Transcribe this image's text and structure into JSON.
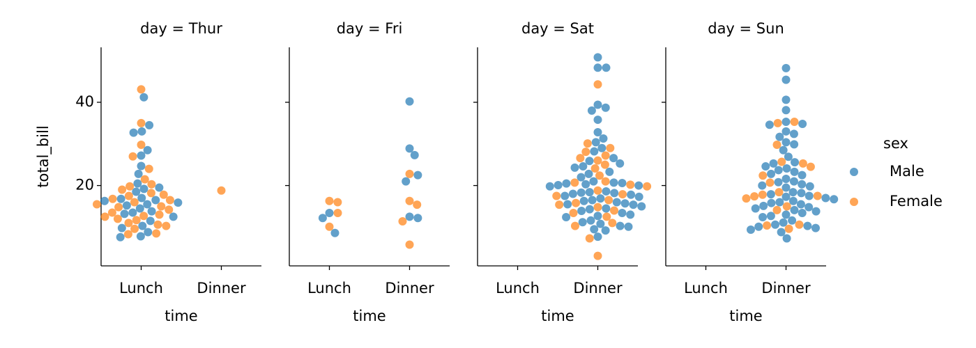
{
  "chart_data": [
    {
      "type": "swarm",
      "title": "day = Thur",
      "xlabel": "time",
      "ylabel": "total_bill",
      "categories": [
        "Lunch",
        "Dinner"
      ],
      "ylim": [
        0.7,
        53.2
      ],
      "yticks": [
        20,
        40
      ],
      "series": [
        {
          "name": "Male",
          "color": "#1f77b4",
          "values": [
            [
              41.2,
              34.5,
              32.7,
              33.0,
              28.5,
              27.2,
              24.7,
              22.8,
              20.5,
              19.5,
              19.2,
              18.5,
              17.0,
              16.8,
              16.5,
              16.3,
              15.9,
              15.5,
              15.2,
              14.5,
              13.8,
              13.5,
              13.2,
              12.5,
              11.5,
              10.3,
              9.8,
              8.8,
              7.8,
              7.6
            ],
            []
          ]
        },
        {
          "name": "Female",
          "color": "#ff7f0e",
          "values": [
            [
              43.1,
              35.0,
              29.8,
              27.0,
              24.0,
              21.5,
              20.3,
              19.8,
              19.0,
              18.2,
              17.8,
              17.5,
              16.8,
              16.5,
              16.0,
              15.5,
              15.0,
              14.8,
              14.2,
              13.5,
              13.0,
              12.7,
              12.5,
              12.0,
              11.7,
              11.0,
              10.6,
              10.3,
              9.6,
              8.5,
              8.3
            ],
            [
              18.8
            ]
          ]
        }
      ]
    },
    {
      "type": "swarm",
      "title": "day = Fri",
      "xlabel": "time",
      "categories": [
        "Lunch",
        "Dinner"
      ],
      "ylim": [
        0.7,
        53.2
      ],
      "yticks": [
        20,
        40
      ],
      "series": [
        {
          "name": "Male",
          "color": "#1f77b4",
          "values": [
            [
              13.4,
              12.2,
              8.6
            ],
            [
              40.2,
              28.9,
              27.3,
              22.5,
              21.0,
              12.5,
              12.2
            ]
          ]
        },
        {
          "name": "Female",
          "color": "#ff7f0e",
          "values": [
            [
              16.3,
              16.0,
              13.4,
              10.1
            ],
            [
              22.8,
              16.3,
              15.4,
              11.4,
              5.8
            ]
          ]
        }
      ]
    },
    {
      "type": "swarm",
      "title": "day = Sat",
      "xlabel": "time",
      "categories": [
        "Lunch",
        "Dinner"
      ],
      "ylim": [
        0.7,
        53.2
      ],
      "yticks": [
        20,
        40
      ],
      "series": [
        {
          "name": "Male",
          "color": "#1f77b4",
          "values": [
            [],
            [
              50.8,
              48.3,
              48.3,
              39.4,
              38.7,
              38.0,
              35.8,
              32.8,
              31.3,
              30.4,
              29.0,
              28.2,
              26.6,
              25.9,
              25.3,
              24.6,
              24.3,
              23.3,
              22.8,
              22.0,
              21.0,
              20.7,
              20.6,
              20.5,
              20.3,
              20.1,
              20.0,
              19.8,
              18.6,
              18.4,
              18.3,
              18.2,
              18.0,
              17.8,
              17.5,
              17.3,
              16.9,
              16.5,
              16.3,
              16.0,
              15.7,
              15.5,
              15.4,
              15.0,
              14.5,
              14.3,
              13.9,
              13.4,
              13.0,
              12.7,
              12.4,
              11.6,
              11.2,
              10.8,
              10.3,
              10.1,
              9.5,
              9.2,
              7.7
            ]
          ]
        },
        {
          "name": "Female",
          "color": "#ff7f0e",
          "values": [
            [],
            [
              44.3,
              30.1,
              29.0,
              28.1,
              27.2,
              26.6,
              26.0,
              25.0,
              24.1,
              22.4,
              21.0,
              20.7,
              20.2,
              19.8,
              18.8,
              17.9,
              17.5,
              16.5,
              15.8,
              15.4,
              14.8,
              14.0,
              13.4,
              12.5,
              11.0,
              10.3,
              7.3,
              3.1
            ]
          ]
        }
      ]
    },
    {
      "type": "swarm",
      "title": "day = Sun",
      "xlabel": "time",
      "categories": [
        "Lunch",
        "Dinner"
      ],
      "ylim": [
        0.7,
        53.2
      ],
      "yticks": [
        20,
        40
      ],
      "legend": {
        "title": "sex",
        "position": "right"
      },
      "series": [
        {
          "name": "Male",
          "color": "#1f77b4",
          "values": [
            [],
            [
              48.2,
              45.4,
              40.6,
              38.1,
              35.3,
              34.8,
              34.6,
              33.0,
              32.4,
              31.7,
              30.4,
              29.9,
              28.5,
              26.9,
              25.6,
              25.3,
              24.6,
              24.1,
              23.7,
              23.3,
              22.8,
              22.5,
              21.6,
              21.0,
              20.8,
              20.3,
              20.0,
              19.8,
              19.5,
              18.4,
              18.2,
              17.9,
              17.5,
              17.3,
              17.0,
              16.7,
              16.3,
              16.0,
              15.8,
              15.5,
              15.1,
              14.8,
              14.5,
              14.1,
              13.8,
              13.4,
              13.0,
              12.7,
              12.4,
              11.6,
              11.1,
              10.6,
              10.3,
              10.1,
              9.8,
              9.4,
              8.8,
              7.3
            ]
          ]
        },
        {
          "name": "Female",
          "color": "#ff7f0e",
          "values": [
            [],
            [
              35.3,
              35.0,
              29.8,
              25.7,
              25.3,
              24.5,
              22.4,
              20.7,
              18.4,
              17.8,
              17.5,
              17.4,
              16.9,
              15.0,
              14.1,
              10.6,
              10.4,
              9.6
            ]
          ]
        }
      ]
    }
  ]
}
